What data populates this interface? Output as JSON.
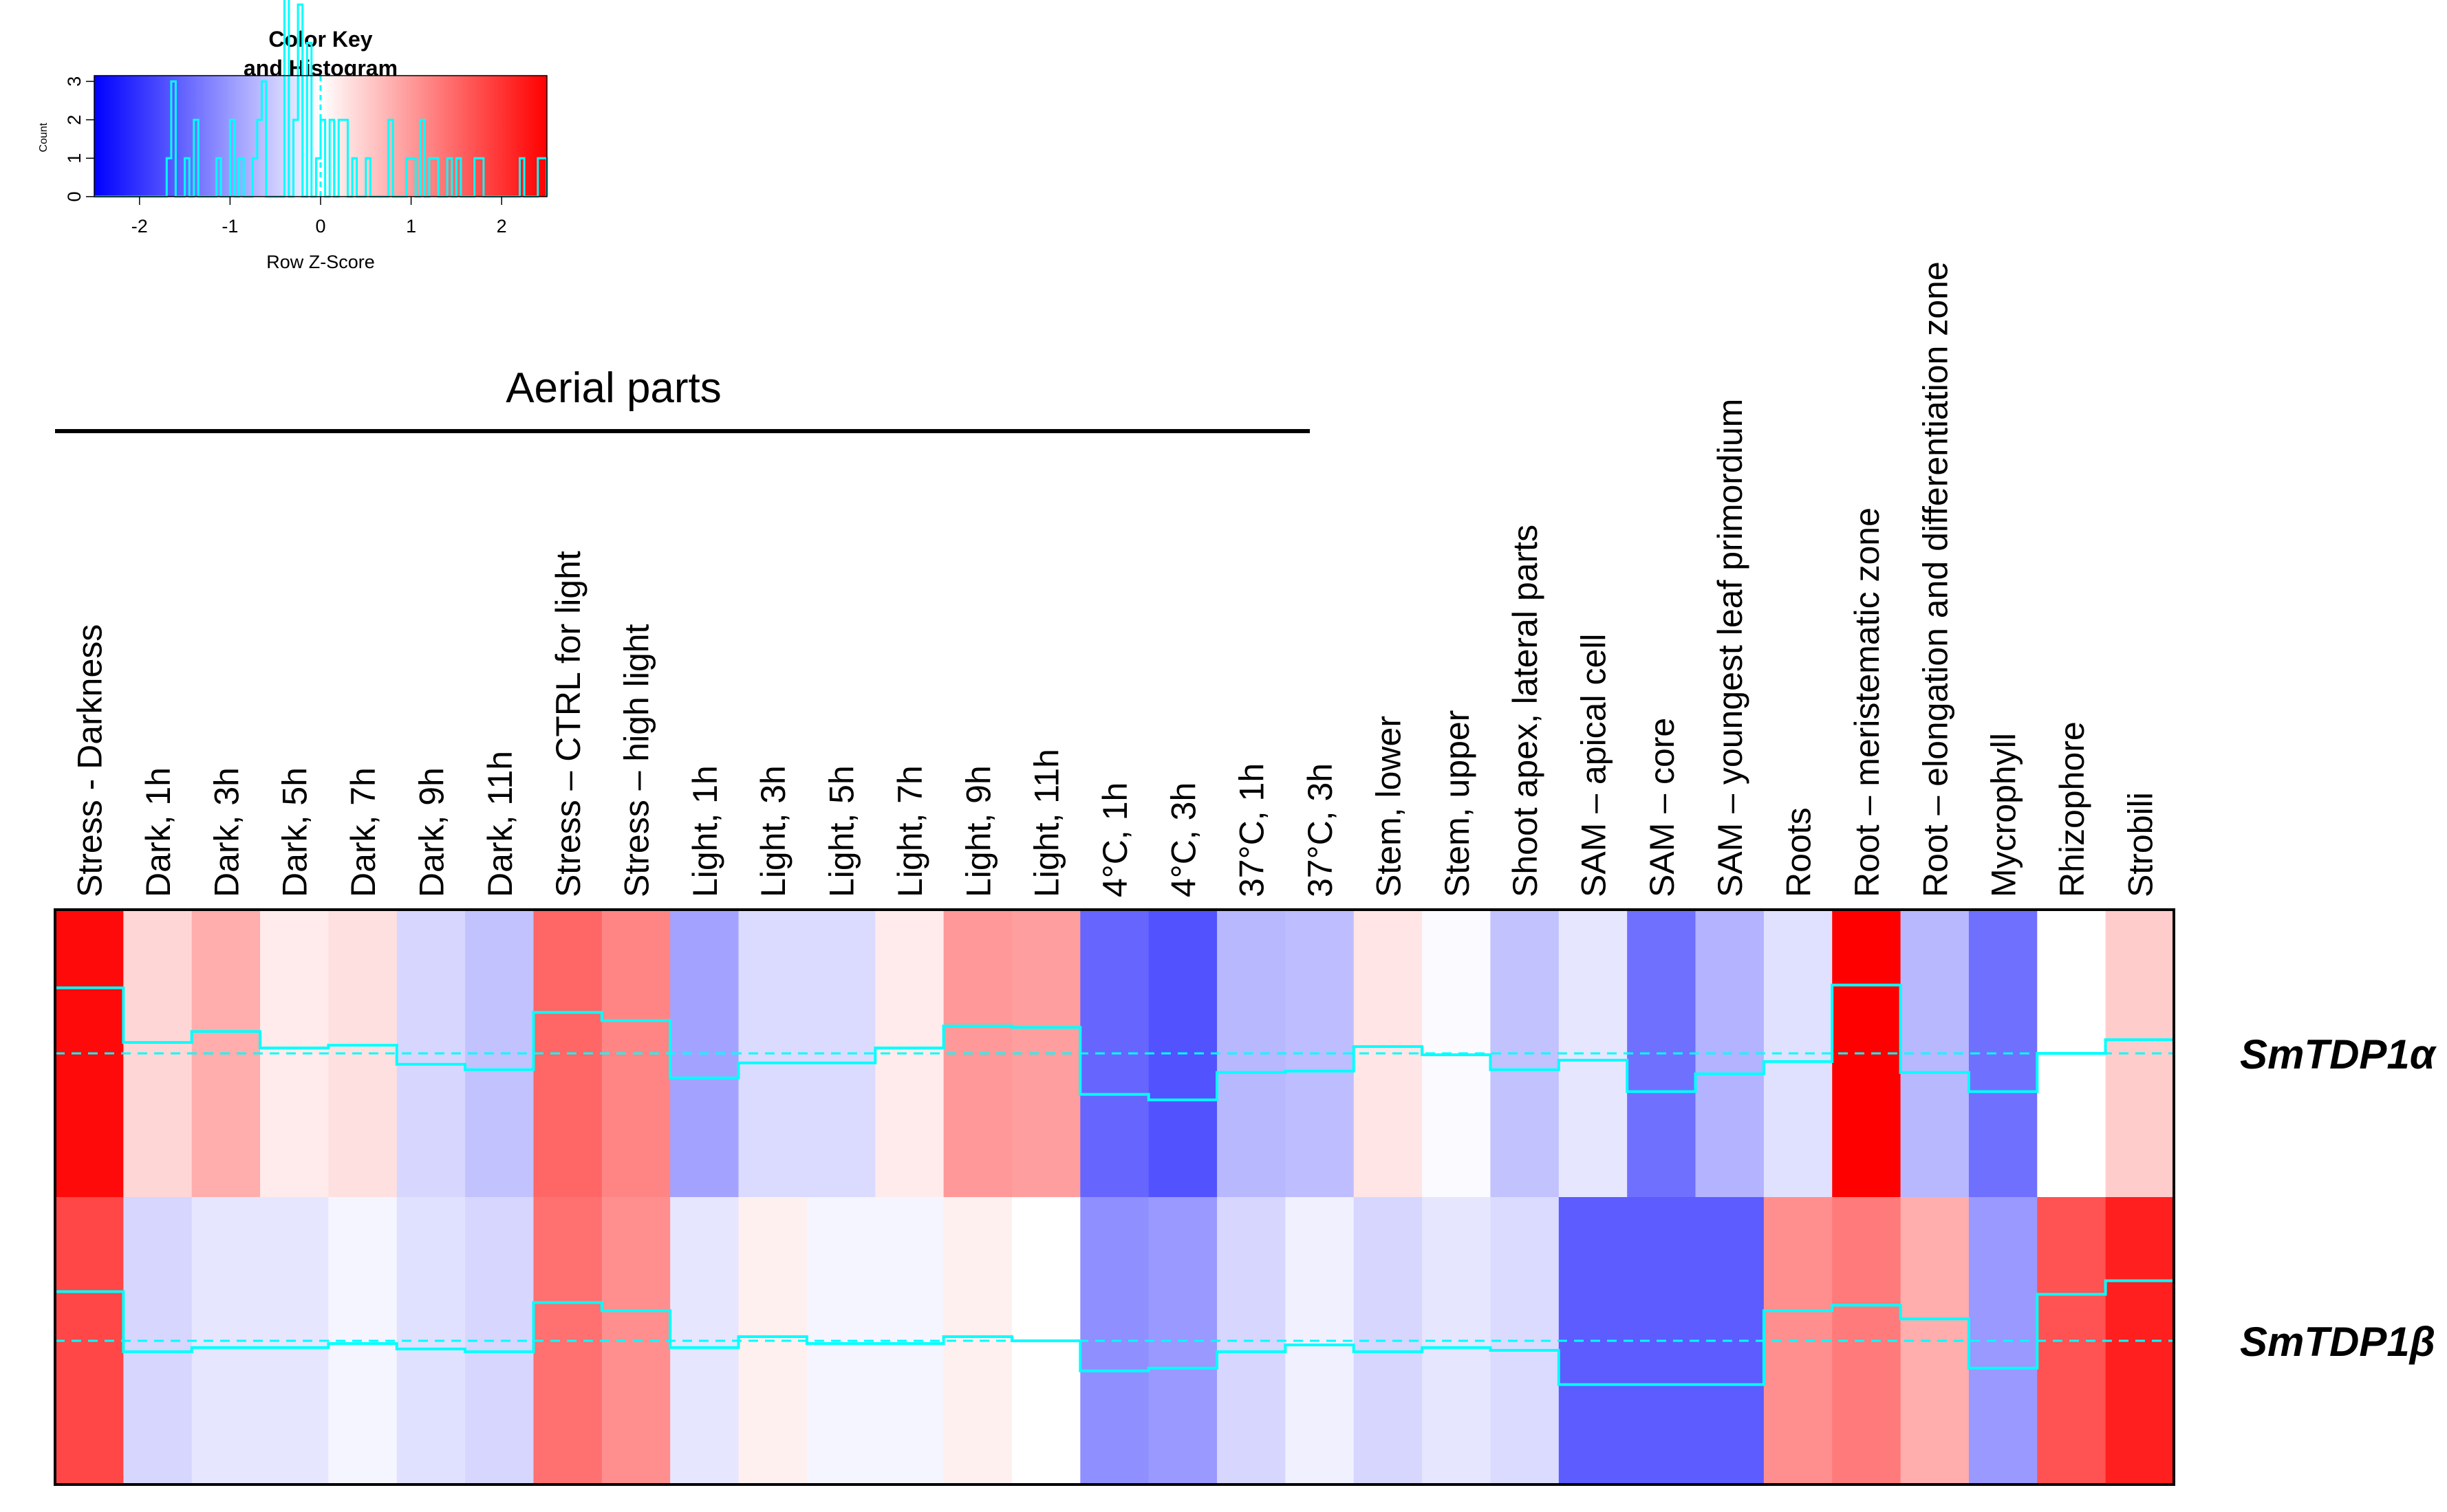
{
  "chart_data": {
    "type": "heatmap",
    "group_label": "Aerial parts",
    "columns": [
      "Stress - Darkness",
      "Dark, 1h",
      "Dark, 3h",
      "Dark, 5h",
      "Dark, 7h",
      "Dark, 9h",
      "Dark, 11h",
      "Stress – CTRL for  light",
      "Stress – high  light",
      "Light, 1h",
      "Light, 3h",
      "Light, 5h",
      "Light, 7h",
      "Light, 9h",
      "Light, 11h",
      "4°C, 1h",
      "4°C, 3h",
      "37°C, 1h",
      "37°C, 3h",
      "Stem, lower",
      "Stem, upper",
      "Shoot apex, lateral parts",
      "SAM – apical cell",
      "SAM – core",
      "SAM – youngest leaf primordium",
      "Roots",
      "Root – meristematic zone",
      "Root – elongation and differentiation zone",
      "Mycrophyll",
      "Rhizophore",
      "Strobili"
    ],
    "rows": [
      {
        "name": "SmTDP1α",
        "zscores": [
          2.4,
          0.4,
          0.8,
          0.2,
          0.3,
          -0.4,
          -0.6,
          1.5,
          1.2,
          -0.9,
          -0.35,
          -0.35,
          0.2,
          1.0,
          0.95,
          -1.5,
          -1.7,
          -0.7,
          -0.65,
          0.25,
          -0.05,
          -0.6,
          -0.25,
          -1.4,
          -0.75,
          -0.3,
          2.5,
          -0.7,
          -1.4,
          0.0,
          0.5
        ]
      },
      {
        "name": "SmTDP1β",
        "zscores": [
          1.8,
          -0.4,
          -0.25,
          -0.25,
          -0.1,
          -0.3,
          -0.4,
          1.4,
          1.1,
          -0.25,
          0.15,
          -0.1,
          -0.1,
          0.15,
          0.0,
          -1.1,
          -1.0,
          -0.4,
          -0.15,
          -0.4,
          -0.25,
          -0.35,
          -1.6,
          -1.6,
          -1.6,
          1.1,
          1.3,
          0.8,
          -1.0,
          1.7,
          2.2
        ]
      }
    ],
    "color_key": {
      "title_line1": "Color Key",
      "title_line2": "and Histogram",
      "xlabel": "Row Z-Score",
      "ylabel": "Count",
      "xlim": [
        -2.5,
        2.5
      ],
      "x_ticks": [
        "-2",
        "-1",
        "0",
        "1",
        "2"
      ],
      "y_ticks": [
        "0",
        "1",
        "2",
        "3"
      ],
      "low_color": "#0000ff",
      "mid_color": "#ffffff",
      "high_color": "#ff0000",
      "trace_color": "#00ffff"
    }
  }
}
